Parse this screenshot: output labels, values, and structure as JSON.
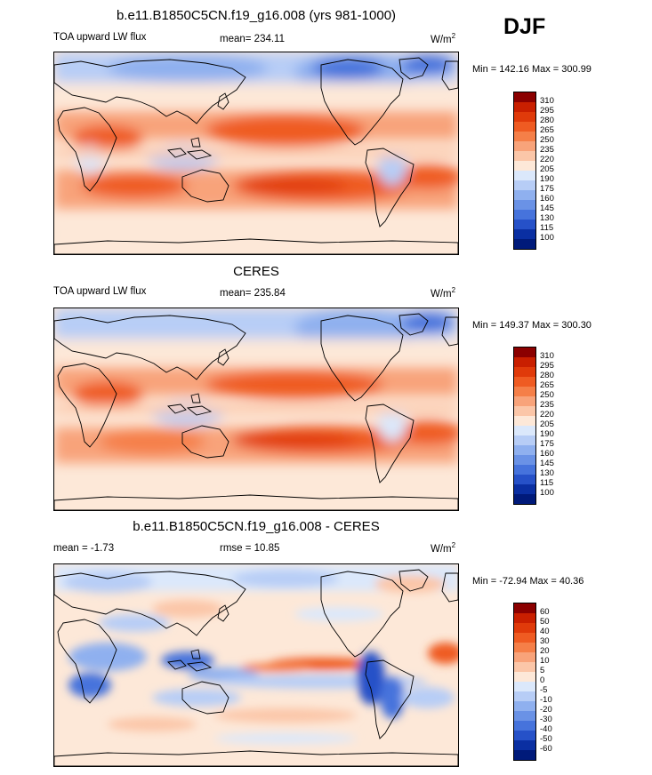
{
  "season": "DJF",
  "panels": [
    {
      "title": "b.e11.B1850C5CN.f19_g16.008 (yrs 981-1000)",
      "left_label": "TOA upward LW flux",
      "center_label": "mean= 234.11",
      "units": "W/m",
      "units_exp": "2",
      "minmax": "Min = 142.16 Max = 300.99",
      "levels": [
        "310",
        "295",
        "280",
        "265",
        "250",
        "235",
        "220",
        "205",
        "190",
        "175",
        "160",
        "145",
        "130",
        "115",
        "100"
      ],
      "colors": [
        "#8b0000",
        "#c91f00",
        "#e03a0a",
        "#ef5b22",
        "#f57f48",
        "#f8a37a",
        "#fbc6a8",
        "#fde8d8",
        "#dbe8fb",
        "#b7cdf6",
        "#8fb0ef",
        "#6a92e6",
        "#4673dc",
        "#2651c8",
        "#0a2fa2",
        "#001a7a"
      ]
    },
    {
      "title": "CERES",
      "left_label": "TOA upward LW flux",
      "center_label": "mean= 235.84",
      "units": "W/m",
      "units_exp": "2",
      "minmax": "Min = 149.37 Max = 300.30",
      "levels": [
        "310",
        "295",
        "280",
        "265",
        "250",
        "235",
        "220",
        "205",
        "190",
        "175",
        "160",
        "145",
        "130",
        "115",
        "100"
      ],
      "colors": [
        "#8b0000",
        "#c91f00",
        "#e03a0a",
        "#ef5b22",
        "#f57f48",
        "#f8a37a",
        "#fbc6a8",
        "#fde8d8",
        "#dbe8fb",
        "#b7cdf6",
        "#8fb0ef",
        "#6a92e6",
        "#4673dc",
        "#2651c8",
        "#0a2fa2",
        "#001a7a"
      ]
    },
    {
      "title": "b.e11.B1850C5CN.f19_g16.008 - CERES",
      "left_label": "mean =  -1.73",
      "center_label": "rmse =  10.85",
      "units": "W/m",
      "units_exp": "2",
      "minmax": "Min = -72.94 Max =  40.36",
      "levels": [
        "60",
        "50",
        "40",
        "30",
        "20",
        "10",
        "5",
        "0",
        "-5",
        "-10",
        "-20",
        "-30",
        "-40",
        "-50",
        "-60"
      ],
      "colors": [
        "#8b0000",
        "#c91f00",
        "#e03a0a",
        "#ef5b22",
        "#f57f48",
        "#f8a37a",
        "#fbc6a8",
        "#fde8d8",
        "#dbe8fb",
        "#b7cdf6",
        "#8fb0ef",
        "#6a92e6",
        "#4673dc",
        "#2651c8",
        "#0a2fa2",
        "#001a7a"
      ]
    }
  ]
}
